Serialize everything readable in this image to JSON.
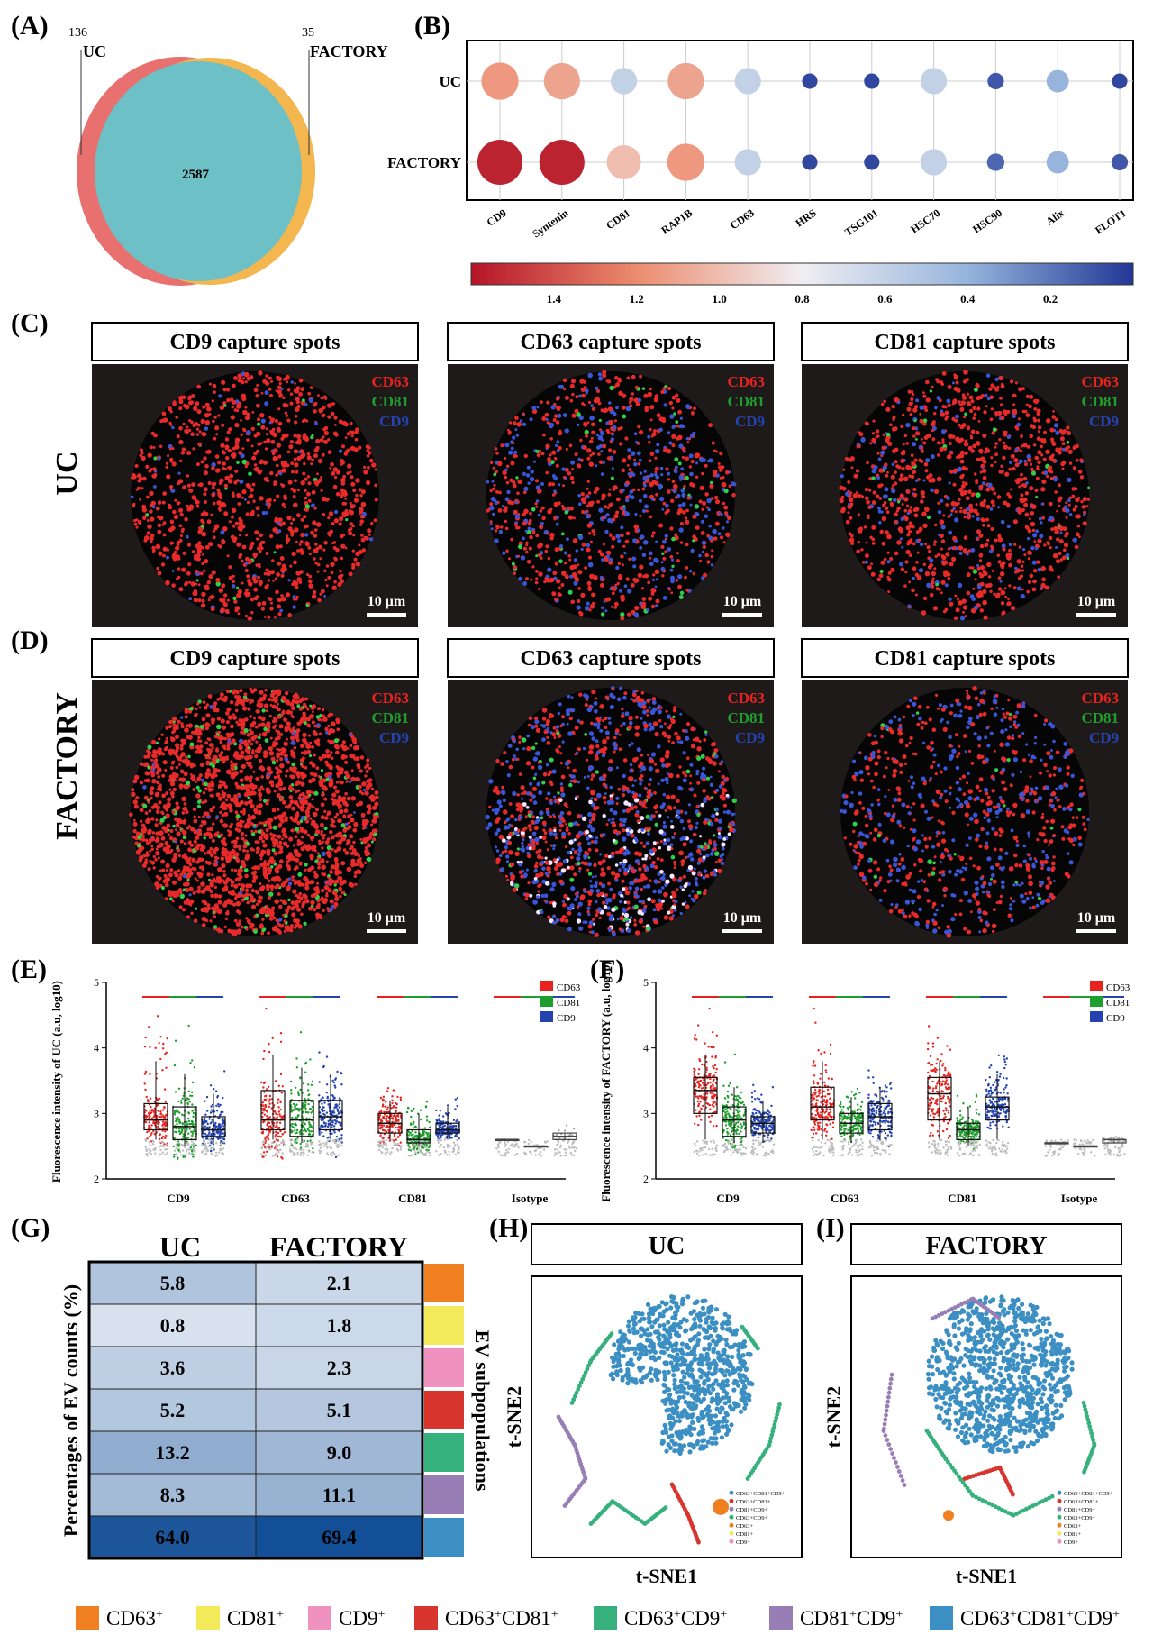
{
  "panel_labels": {
    "A": "(A)",
    "B": "(B)",
    "C": "(C)",
    "D": "(D)",
    "E": "(E)",
    "F": "(F)",
    "G": "(G)",
    "H": "(H)",
    "I": "(I)"
  },
  "colors": {
    "uc_venn": "#e8706f",
    "factory_venn": "#f4b64e",
    "overlap_venn": "#6cc0c6",
    "cd63": "#e8231f",
    "cd81": "#1e9e2c",
    "cd9": "#2443b0",
    "image_bg": "#1f1a1a",
    "sub_cd63": "#f07f22",
    "sub_cd81": "#f2ea5a",
    "sub_cd9": "#ef92c0",
    "sub_cd63cd81": "#d8352e",
    "sub_cd63cd9": "#36b07c",
    "sub_cd81cd9": "#977fb6",
    "sub_all": "#3c8fc2"
  },
  "chart_data": [
    {
      "panel": "A",
      "type": "venn",
      "sets": [
        {
          "name": "UC",
          "unique": 136
        },
        {
          "name": "FACTORY",
          "unique": 35
        }
      ],
      "overlap": 2587
    },
    {
      "panel": "B",
      "type": "scatter",
      "subtype": "dot-plot",
      "rows": [
        "UC",
        "FACTORY"
      ],
      "categories": [
        "CD9",
        "Syntenin",
        "CD81",
        "RAP1B",
        "CD63",
        "HRS",
        "TSG101",
        "HSC70",
        "HSC90",
        "Alix",
        "FLOT1"
      ],
      "series": [
        {
          "name": "UC",
          "values": [
            1.15,
            1.1,
            0.6,
            1.1,
            0.6,
            0.05,
            0.05,
            0.6,
            0.1,
            0.4,
            0.05
          ]
        },
        {
          "name": "FACTORY",
          "values": [
            1.55,
            1.55,
            1.0,
            1.15,
            0.6,
            0.05,
            0.05,
            0.6,
            0.15,
            0.4,
            0.1
          ]
        }
      ],
      "colorbar": {
        "ticks": [
          "1.4",
          "1.2",
          "1.0",
          "0.8",
          "0.6",
          "0.4",
          "0.2"
        ],
        "range": [
          1.6,
          0.0
        ]
      }
    },
    {
      "panel": "E",
      "type": "box",
      "ylabel": "Fluorescence intensity of UC (a.u, log10)",
      "yticks": [
        "2",
        "3",
        "4",
        "5"
      ],
      "ylim": [
        2,
        5
      ],
      "categories": [
        "CD9",
        "CD63",
        "CD81",
        "Isotype"
      ],
      "legend": [
        "CD63",
        "CD81",
        "CD9"
      ],
      "series": [
        {
          "name": "CD63",
          "boxes": [
            [
              2.6,
              2.75,
              2.9,
              3.15,
              3.8
            ],
            [
              2.6,
              2.75,
              2.9,
              3.35,
              3.9
            ],
            [
              2.6,
              2.7,
              2.85,
              3.0,
              3.2
            ],
            [
              2.6,
              2.6,
              2.6,
              2.6,
              2.6
            ]
          ]
        },
        {
          "name": "CD81",
          "boxes": [
            [
              2.5,
              2.6,
              2.8,
              3.1,
              3.6
            ],
            [
              2.55,
              2.65,
              2.9,
              3.2,
              3.7
            ],
            [
              2.5,
              2.55,
              2.6,
              2.75,
              3.0
            ],
            [
              2.5,
              2.5,
              2.5,
              2.5,
              2.5
            ]
          ]
        },
        {
          "name": "CD9",
          "boxes": [
            [
              2.55,
              2.65,
              2.75,
              2.95,
              3.3
            ],
            [
              2.6,
              2.75,
              2.95,
              3.2,
              3.6
            ],
            [
              2.6,
              2.7,
              2.75,
              2.85,
              3.1
            ],
            [
              2.6,
              2.6,
              2.65,
              2.7,
              2.7
            ]
          ]
        }
      ],
      "isotype_open_boxes": [
        [
          2.6,
          2.65,
          2.7,
          2.9,
          3.0
        ],
        [
          2.55,
          2.6,
          2.65,
          2.7,
          2.75
        ],
        [
          2.6,
          2.62,
          2.65,
          2.7,
          2.7
        ]
      ]
    },
    {
      "panel": "F",
      "type": "box",
      "ylabel": "Fluorescence intensity of FACTORY (a.u, log10)",
      "yticks": [
        "2",
        "3",
        "4",
        "5"
      ],
      "ylim": [
        2,
        5
      ],
      "categories": [
        "CD9",
        "CD63",
        "CD81",
        "Isotype"
      ],
      "legend": [
        "CD63",
        "CD81",
        "CD9"
      ],
      "series": [
        {
          "name": "CD63",
          "boxes": [
            [
              2.6,
              3.0,
              3.35,
              3.55,
              3.9
            ],
            [
              2.6,
              2.9,
              3.1,
              3.4,
              3.8
            ],
            [
              2.6,
              2.9,
              3.3,
              3.55,
              3.8
            ],
            [
              2.55,
              2.55,
              2.55,
              2.55,
              2.55
            ]
          ]
        },
        {
          "name": "CD81",
          "boxes": [
            [
              2.55,
              2.65,
              2.9,
              3.1,
              3.4
            ],
            [
              2.55,
              2.7,
              2.85,
              3.0,
              3.25
            ],
            [
              2.5,
              2.6,
              2.75,
              2.85,
              3.1
            ],
            [
              2.5,
              2.5,
              2.5,
              2.5,
              2.5
            ]
          ]
        },
        {
          "name": "CD9",
          "boxes": [
            [
              2.55,
              2.7,
              2.85,
              2.95,
              3.2
            ],
            [
              2.6,
              2.75,
              2.95,
              3.15,
              3.4
            ],
            [
              2.6,
              2.9,
              3.1,
              3.25,
              3.6
            ],
            [
              2.55,
              2.55,
              2.6,
              2.6,
              2.6
            ]
          ]
        }
      ],
      "isotype_open_boxes": [
        [
          2.55,
          2.6,
          2.65,
          2.85,
          2.9
        ],
        [
          2.5,
          2.52,
          2.55,
          2.6,
          2.6
        ],
        [
          2.55,
          2.57,
          2.6,
          2.62,
          2.65
        ]
      ]
    },
    {
      "panel": "G",
      "type": "heatmap",
      "columns": [
        "UC",
        "FACTORY"
      ],
      "ylabel": "Percentages of EV counts (%)",
      "side_label": "EV subpopulations",
      "rows": [
        "CD63+",
        "CD81+",
        "CD9+",
        "CD63+CD81+",
        "CD63+CD9+",
        "CD81+CD9+",
        "CD63+CD81+CD9+"
      ],
      "values": [
        [
          "5.8",
          "2.1"
        ],
        [
          "0.8",
          "1.8"
        ],
        [
          "3.6",
          "2.3"
        ],
        [
          "5.2",
          "5.1"
        ],
        [
          "13.2",
          "9.0"
        ],
        [
          "8.3",
          "11.1"
        ],
        [
          "64.0",
          "69.4"
        ]
      ]
    },
    {
      "panel": "H",
      "type": "scatter",
      "title": "UC",
      "xlabel": "t-SNE1",
      "ylabel": "t-SNE2",
      "legend": [
        "CD63+CD81+CD9+",
        "CD63+CD81+",
        "CD81+CD9+",
        "CD63+CD9+",
        "CD63+",
        "CD81+",
        "CD9+"
      ]
    },
    {
      "panel": "I",
      "type": "scatter",
      "title": "FACTORY",
      "xlabel": "t-SNE1",
      "ylabel": "t-SNE2",
      "legend": [
        "CD63+CD81+CD9+",
        "CD63+CD81+",
        "CD81+CD9+",
        "CD63+CD9+",
        "CD63+",
        "CD81+",
        "CD9+"
      ]
    }
  ],
  "micrographs": {
    "row_labels": [
      "UC",
      "FACTORY"
    ],
    "titles": [
      "CD9 capture spots",
      "CD63 capture spots",
      "CD81 capture spots"
    ],
    "channels": [
      "CD63",
      "CD81",
      "CD9"
    ],
    "scalebar": "10 μm"
  },
  "bottom_legend": [
    {
      "base": "CD63",
      "sup": "+"
    },
    {
      "base": "CD81",
      "sup": "+"
    },
    {
      "base": "CD9",
      "sup": "+"
    },
    {
      "parts": [
        [
          "CD63",
          "+"
        ],
        [
          "CD81",
          "+"
        ]
      ]
    },
    {
      "parts": [
        [
          "CD63",
          "+"
        ],
        [
          "CD9",
          "+"
        ]
      ]
    },
    {
      "parts": [
        [
          "CD81",
          "+"
        ],
        [
          "CD9",
          "+"
        ]
      ]
    },
    {
      "parts": [
        [
          "CD63",
          "+"
        ],
        [
          "CD81",
          "+"
        ],
        [
          "CD9",
          "+"
        ]
      ]
    }
  ]
}
